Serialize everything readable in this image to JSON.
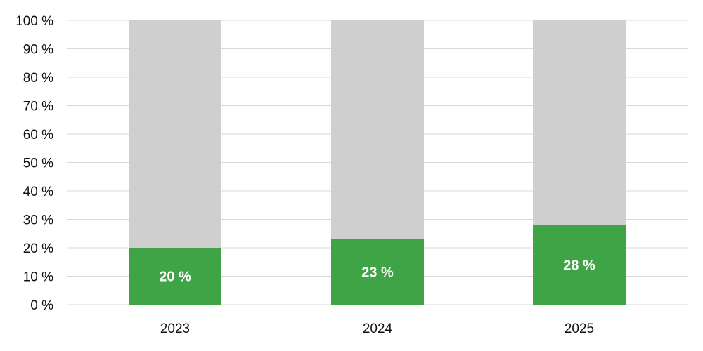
{
  "chart_data": {
    "type": "bar",
    "stacked": true,
    "categories": [
      "2023",
      "2024",
      "2025"
    ],
    "series": [
      {
        "values": [
          20,
          23,
          28
        ],
        "color": "#3ea446"
      },
      {
        "values": [
          80,
          77,
          72
        ],
        "color": "#cfcfcf"
      }
    ],
    "data_labels": [
      "20 %",
      "23 %",
      "28 %"
    ],
    "y_ticks": [
      "0 %",
      "10 %",
      "20 %",
      "30 %",
      "40 %",
      "50 %",
      "60 %",
      "70 %",
      "80 %",
      "90 %",
      "100 %"
    ],
    "ylim": [
      0,
      100
    ],
    "grid": true,
    "title": "",
    "xlabel": "",
    "ylabel": ""
  }
}
